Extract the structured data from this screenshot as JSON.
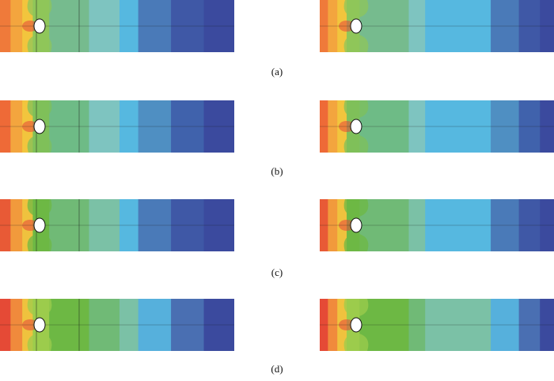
{
  "captions": [
    "(a)",
    "(b)",
    "(c)",
    "(d)"
  ],
  "colors": {
    "red": "#e8453a",
    "orange": "#f28a3c",
    "yellow": "#f2c53d",
    "green": "#6db844",
    "teal": "#7fc2b4",
    "sky": "#4cb6e4",
    "blue": "#4a6fb2",
    "navy": "#3d4a9e"
  },
  "rows": [
    {
      "label_key": 0,
      "left": [
        "#ef7a3a",
        "#f3a53e",
        "#f2c53d",
        "#8fc65a",
        "#76bb8e",
        "#7ec4c0",
        "#56b8e0",
        "#4a7ab8",
        "#3f58a6",
        "#3b4a9e"
      ],
      "right": [
        "#ef7a3a",
        "#f3a53e",
        "#f2c53d",
        "#8fc65a",
        "#76bb8e",
        "#7ec4c0",
        "#56b8e0",
        "#4a7ab8",
        "#3f58a6",
        "#3b4a9e"
      ]
    },
    {
      "label_key": 1,
      "left": [
        "#ee6a37",
        "#f3a53e",
        "#f2c53d",
        "#7fc05a",
        "#6ebb86",
        "#7ec4c0",
        "#56b8e0",
        "#4f8fc2",
        "#4062ac",
        "#3b4a9e"
      ],
      "right": [
        "#ee6a37",
        "#f3a53e",
        "#f2c53d",
        "#7fc05a",
        "#6ebb86",
        "#7ec4c0",
        "#56b8e0",
        "#4f8fc2",
        "#4062ac",
        "#3b4a9e"
      ]
    },
    {
      "label_key": 2,
      "left": [
        "#e85a36",
        "#f19a3c",
        "#efc23e",
        "#6db844",
        "#70ba76",
        "#7bc1a6",
        "#56b8e0",
        "#4a7ab8",
        "#3f58a6",
        "#3b4a9e"
      ],
      "right": [
        "#e85a36",
        "#f19a3c",
        "#efc23e",
        "#6db844",
        "#70ba76",
        "#7bc1a6",
        "#56b8e0",
        "#4a7ab8",
        "#3f58a6",
        "#3b4a9e"
      ]
    },
    {
      "label_key": 3,
      "left": [
        "#e54a36",
        "#f08a3c",
        "#efc23e",
        "#9ccc4c",
        "#6db844",
        "#70ba76",
        "#7bc1a6",
        "#56b0dc",
        "#4a6fb2",
        "#3b4a9e"
      ],
      "right": [
        "#e54a36",
        "#f08a3c",
        "#efc23e",
        "#9ccc4c",
        "#6db844",
        "#70ba76",
        "#7bc1a6",
        "#56b0dc",
        "#4a6fb2",
        "#3b4a9e"
      ]
    }
  ]
}
